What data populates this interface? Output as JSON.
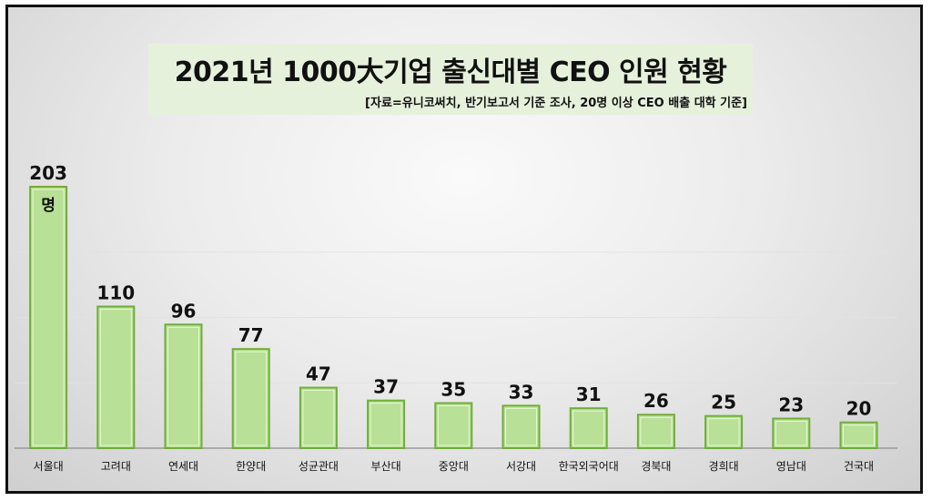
{
  "chart_data": {
    "type": "bar",
    "title": "2021년 1000大기업 출신대별 CEO 인원 현황",
    "subtitle": "[자료=유니코써치, 반기보고서 기준 조사, 20명 이상 CEO 배출 대학 기준]",
    "categories": [
      "서울대",
      "고려대",
      "연세대",
      "한양대",
      "성균관대",
      "부산대",
      "중앙대",
      "서강대",
      "한국외국어대",
      "경북대",
      "경희대",
      "영남대",
      "건국대"
    ],
    "values": [
      203,
      110,
      96,
      77,
      47,
      37,
      35,
      33,
      31,
      26,
      25,
      23,
      20
    ],
    "first_label_unit": "명",
    "ylim": [
      0,
      210
    ],
    "grid": true,
    "legend": "none",
    "bar_color": "#b8e096",
    "bar_border": "#6fae3a"
  }
}
